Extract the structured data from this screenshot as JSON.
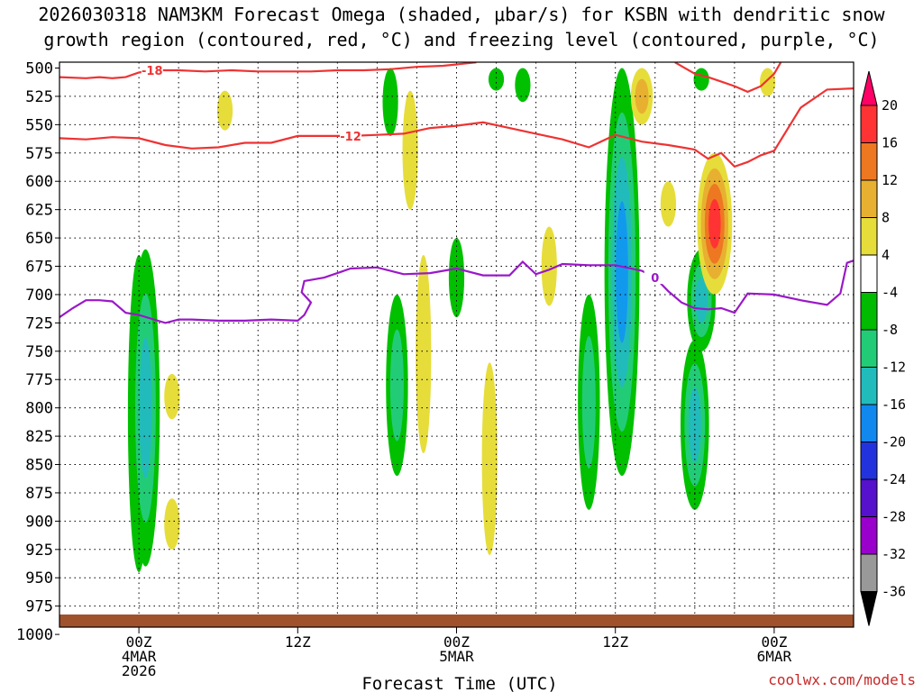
{
  "chart_data": {
    "type": "heatmap",
    "title_line1": "2026030318 NAM3KM Forecast Omega (shaded, μbar/s) for KSBN with dendritic snow",
    "title_line2": "growth region (contoured, red, °C) and freezing level (contoured, purple, °C)",
    "xlabel": "Forecast Time (UTC)",
    "credit": "coolwx.com/models",
    "x_range_hours": [
      18,
      78
    ],
    "y_levels_hpa": [
      500,
      525,
      550,
      575,
      600,
      625,
      650,
      675,
      700,
      725,
      750,
      775,
      800,
      825,
      850,
      875,
      900,
      925,
      950,
      975,
      1000
    ],
    "y_tick_labels": [
      "500",
      "525",
      "550",
      "575",
      "600",
      "625",
      "650",
      "675",
      "700",
      "725",
      "750",
      "775",
      "800",
      "825",
      "850",
      "875",
      "900",
      "925",
      "950",
      "975",
      "1000"
    ],
    "x_ticks": [
      {
        "hour": 24,
        "lines": [
          "00Z",
          "4MAR",
          "2026"
        ]
      },
      {
        "hour": 36,
        "lines": [
          "12Z"
        ]
      },
      {
        "hour": 48,
        "lines": [
          "00Z",
          "5MAR"
        ]
      },
      {
        "hour": 60,
        "lines": [
          "12Z"
        ]
      },
      {
        "hour": 72,
        "lines": [
          "00Z",
          "6MAR"
        ]
      }
    ],
    "colorbar": {
      "labels": [
        "20",
        "16",
        "12",
        "8",
        "4",
        "-4",
        "-8",
        "-12",
        "-16",
        "-20",
        "-24",
        "-28",
        "-32",
        "-36"
      ],
      "colors": [
        "#ff0066",
        "#ff3333",
        "#ee7722",
        "#e8b030",
        "#e6dd3a",
        "#ffffff",
        "#00bb00",
        "#22cc77",
        "#22bbbb",
        "#1188ee",
        "#2233dd",
        "#5511cc",
        "#9900cc",
        "#999999",
        "#000000"
      ]
    },
    "series": [
      {
        "name": "-18 °C isotherm",
        "color": "#ee3333",
        "label": "-18",
        "x": [
          18,
          20,
          21,
          22,
          23,
          24,
          25,
          27,
          29,
          31,
          33,
          35,
          37,
          39,
          41,
          43,
          45,
          47,
          49.5
        ],
        "y": [
          508,
          509,
          508,
          509,
          508,
          504,
          502,
          502,
          503,
          502,
          503,
          503,
          503,
          502,
          502,
          501,
          499,
          498,
          495
        ]
      },
      {
        "name": "-18 °C isotherm (east)",
        "color": "#ee3333",
        "x": [
          64.5,
          66,
          67,
          68,
          69,
          70,
          71,
          72,
          72.5
        ],
        "y": [
          495,
          505,
          508,
          512,
          516,
          521,
          516,
          505,
          495
        ]
      },
      {
        "name": "-12 °C isotherm",
        "color": "#ee3333",
        "label": "-12",
        "x": [
          18,
          20,
          22,
          24,
          26,
          28,
          30,
          32,
          34,
          36,
          38,
          40,
          42,
          44,
          46,
          48,
          50,
          52,
          54,
          56,
          58,
          60,
          62,
          64,
          66,
          67,
          68,
          69,
          70,
          71,
          72,
          74,
          76,
          78
        ],
        "y": [
          562,
          563,
          561,
          562,
          568,
          571,
          570,
          566,
          566,
          560,
          560,
          560,
          559,
          558,
          553,
          551,
          548,
          553,
          558,
          563,
          570,
          559,
          565,
          568,
          572,
          580,
          575,
          587,
          583,
          577,
          573,
          535,
          519,
          518
        ]
      },
      {
        "name": "0 °C freezing level",
        "color": "#9a18c8",
        "label": "0",
        "x": [
          18,
          19,
          20,
          21,
          22,
          23,
          24,
          26,
          27,
          28,
          30,
          32,
          34,
          36,
          36.5,
          37,
          36.3,
          36.5,
          38,
          40,
          42,
          44,
          46,
          48,
          50,
          52,
          53,
          54,
          55,
          56,
          58,
          60,
          62,
          63,
          64,
          65,
          66,
          67,
          68,
          69,
          70,
          72,
          74,
          76,
          77,
          77.5,
          78
        ],
        "y": [
          720,
          712,
          705,
          705,
          706,
          716,
          718,
          725,
          722,
          722,
          723,
          723,
          722,
          723,
          718,
          707,
          698,
          688,
          685,
          677,
          676,
          682,
          681,
          677,
          683,
          683,
          671,
          682,
          678,
          673,
          674,
          674,
          679,
          685,
          697,
          707,
          712,
          713,
          712,
          716,
          699,
          700,
          705,
          709,
          699,
          672,
          670
        ]
      }
    ],
    "omega_cells": [
      {
        "hour": 24.0,
        "top": 665,
        "bottom": 945,
        "peak": -8
      },
      {
        "hour": 30.5,
        "top": 520,
        "bottom": 555,
        "peak": 4
      },
      {
        "hour": 24.5,
        "top": 660,
        "bottom": 940,
        "peak": -12
      },
      {
        "hour": 26.5,
        "top": 770,
        "bottom": 810,
        "peak": 4
      },
      {
        "hour": 26.5,
        "top": 880,
        "bottom": 925,
        "peak": 4
      },
      {
        "hour": 43.0,
        "top": 500,
        "bottom": 560,
        "peak": -4
      },
      {
        "hour": 44.5,
        "top": 520,
        "bottom": 625,
        "peak": 4
      },
      {
        "hour": 43.5,
        "top": 700,
        "bottom": 860,
        "peak": -8
      },
      {
        "hour": 45.5,
        "top": 665,
        "bottom": 840,
        "peak": 4
      },
      {
        "hour": 48.0,
        "top": 650,
        "bottom": 720,
        "peak": -4
      },
      {
        "hour": 50.5,
        "top": 760,
        "bottom": 930,
        "peak": 4
      },
      {
        "hour": 51.0,
        "top": 500,
        "bottom": 520,
        "peak": -4
      },
      {
        "hour": 53.0,
        "top": 500,
        "bottom": 530,
        "peak": -4
      },
      {
        "hour": 55.0,
        "top": 640,
        "bottom": 710,
        "peak": 4
      },
      {
        "hour": 58.0,
        "top": 700,
        "bottom": 890,
        "peak": -8
      },
      {
        "hour": 60.5,
        "top": 500,
        "bottom": 860,
        "peak": -16
      },
      {
        "hour": 62.0,
        "top": 500,
        "bottom": 550,
        "peak": 8
      },
      {
        "hour": 64.0,
        "top": 600,
        "bottom": 640,
        "peak": 4
      },
      {
        "hour": 66.0,
        "top": 740,
        "bottom": 890,
        "peak": -12
      },
      {
        "hour": 66.5,
        "top": 660,
        "bottom": 750,
        "peak": -12
      },
      {
        "hour": 66.5,
        "top": 500,
        "bottom": 520,
        "peak": -4
      },
      {
        "hour": 67.5,
        "top": 575,
        "bottom": 700,
        "peak": 16
      },
      {
        "hour": 71.5,
        "top": 500,
        "bottom": 525,
        "peak": 4
      }
    ]
  }
}
